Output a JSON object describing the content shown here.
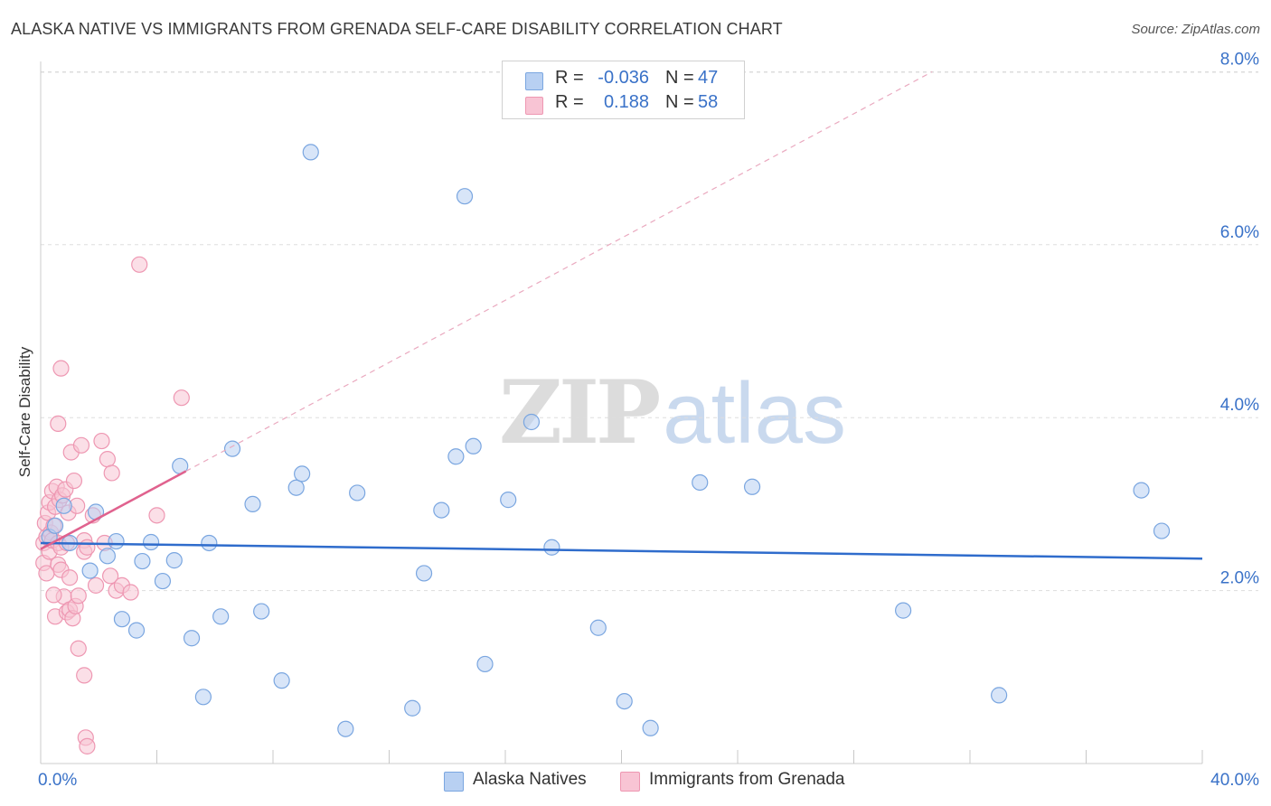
{
  "header": {
    "title": "ALASKA NATIVE VS IMMIGRANTS FROM GRENADA SELF-CARE DISABILITY CORRELATION CHART",
    "source": "Source: ZipAtlas.com"
  },
  "watermark": {
    "zip": "ZIP",
    "atlas": "atlas"
  },
  "legend_top": [
    {
      "r_label": "R =",
      "r_value": "-0.036",
      "n_label": "N =",
      "n_value": "47"
    },
    {
      "r_label": "R =",
      "r_value": "0.188",
      "n_label": "N =",
      "n_value": "58"
    }
  ],
  "colors": {
    "blue_fill": "#b8d0f2",
    "blue_stroke": "#7aa6e0",
    "blue_line": "#2f6ccc",
    "pink_fill": "#f8c4d4",
    "pink_stroke": "#ee97b2",
    "pink_line": "#e0628e",
    "tick_text": "#3a72c8",
    "grid": "#dddddd"
  },
  "chart_data": {
    "type": "scatter",
    "title": "ALASKA NATIVE VS IMMIGRANTS FROM GRENADA SELF-CARE DISABILITY CORRELATION CHART",
    "xlabel": "",
    "ylabel": "Self-Care Disability",
    "xlim": [
      0,
      40
    ],
    "ylim": [
      0,
      8.5
    ],
    "x_tick_labels": [
      {
        "value": 0,
        "label": "0.0%"
      },
      {
        "value": 40,
        "label": "40.0%"
      }
    ],
    "y_tick_labels": [
      {
        "value": 2,
        "label": "2.0%"
      },
      {
        "value": 4,
        "label": "4.0%"
      },
      {
        "value": 6,
        "label": "6.0%"
      },
      {
        "value": 8,
        "label": "8.0%"
      }
    ],
    "series": [
      {
        "name": "Alaska Natives",
        "color": "blue",
        "R": -0.036,
        "N": 47,
        "trend": {
          "x": [
            0,
            40
          ],
          "y": [
            2.55,
            2.37
          ],
          "dashed_extension": false
        },
        "points": [
          [
            0.3,
            2.62
          ],
          [
            0.5,
            2.75
          ],
          [
            0.8,
            2.98
          ],
          [
            1.0,
            2.55
          ],
          [
            1.7,
            2.23
          ],
          [
            1.9,
            2.91
          ],
          [
            2.3,
            2.4
          ],
          [
            2.6,
            2.57
          ],
          [
            2.8,
            1.67
          ],
          [
            3.3,
            1.54
          ],
          [
            3.5,
            2.34
          ],
          [
            3.8,
            2.56
          ],
          [
            4.2,
            2.11
          ],
          [
            4.6,
            2.35
          ],
          [
            4.8,
            3.44
          ],
          [
            5.2,
            1.45
          ],
          [
            5.6,
            0.77
          ],
          [
            5.8,
            2.55
          ],
          [
            6.2,
            1.7
          ],
          [
            6.6,
            3.64
          ],
          [
            7.3,
            3.0
          ],
          [
            7.6,
            1.76
          ],
          [
            8.3,
            0.96
          ],
          [
            8.8,
            3.19
          ],
          [
            9.0,
            3.35
          ],
          [
            9.3,
            7.07
          ],
          [
            10.5,
            0.4
          ],
          [
            10.9,
            3.13
          ],
          [
            12.8,
            0.64
          ],
          [
            13.2,
            2.2
          ],
          [
            13.8,
            2.93
          ],
          [
            14.3,
            3.55
          ],
          [
            14.6,
            6.56
          ],
          [
            14.9,
            3.67
          ],
          [
            15.3,
            1.15
          ],
          [
            16.1,
            3.05
          ],
          [
            16.9,
            3.95
          ],
          [
            17.6,
            2.5
          ],
          [
            19.2,
            1.57
          ],
          [
            20.1,
            0.72
          ],
          [
            21.0,
            0.41
          ],
          [
            22.7,
            3.25
          ],
          [
            24.5,
            3.2
          ],
          [
            29.7,
            1.77
          ],
          [
            33.0,
            0.79
          ],
          [
            37.9,
            3.16
          ],
          [
            38.6,
            2.69
          ]
        ]
      },
      {
        "name": "Immigrants from Grenada",
        "color": "pink",
        "R": 0.188,
        "N": 58,
        "trend": {
          "x": [
            0,
            5.0
          ],
          "y": [
            2.48,
            3.38
          ],
          "dashed_extension": true,
          "dashed_to": {
            "x": 30.7,
            "y": 8.0
          }
        },
        "points": [
          [
            0.1,
            2.32
          ],
          [
            0.1,
            2.55
          ],
          [
            0.15,
            2.78
          ],
          [
            0.2,
            2.62
          ],
          [
            0.2,
            2.2
          ],
          [
            0.25,
            2.9
          ],
          [
            0.3,
            3.02
          ],
          [
            0.3,
            2.45
          ],
          [
            0.35,
            2.67
          ],
          [
            0.4,
            3.15
          ],
          [
            0.4,
            2.58
          ],
          [
            0.45,
            2.75
          ],
          [
            0.5,
            2.97
          ],
          [
            0.5,
            1.7
          ],
          [
            0.55,
            3.2
          ],
          [
            0.6,
            2.55
          ],
          [
            0.6,
            2.3
          ],
          [
            0.65,
            3.05
          ],
          [
            0.7,
            2.5
          ],
          [
            0.7,
            2.24
          ],
          [
            0.75,
            3.1
          ],
          [
            0.8,
            1.93
          ],
          [
            0.85,
            3.17
          ],
          [
            0.9,
            2.55
          ],
          [
            0.9,
            1.75
          ],
          [
            0.7,
            4.57
          ],
          [
            0.95,
            2.9
          ],
          [
            1.0,
            1.78
          ],
          [
            1.0,
            2.15
          ],
          [
            1.05,
            3.6
          ],
          [
            1.1,
            1.68
          ],
          [
            1.15,
            3.27
          ],
          [
            1.2,
            1.82
          ],
          [
            1.25,
            2.98
          ],
          [
            1.3,
            1.94
          ],
          [
            1.3,
            1.33
          ],
          [
            1.4,
            3.68
          ],
          [
            1.5,
            2.58
          ],
          [
            1.5,
            1.02
          ],
          [
            1.5,
            2.45
          ],
          [
            1.55,
            0.3
          ],
          [
            1.6,
            2.5
          ],
          [
            1.6,
            0.2
          ],
          [
            1.8,
            2.87
          ],
          [
            1.9,
            2.06
          ],
          [
            2.1,
            3.73
          ],
          [
            0.6,
            3.93
          ],
          [
            2.2,
            2.55
          ],
          [
            2.3,
            3.52
          ],
          [
            2.4,
            2.17
          ],
          [
            2.45,
            3.36
          ],
          [
            2.6,
            2.0
          ],
          [
            2.8,
            2.06
          ],
          [
            3.1,
            1.98
          ],
          [
            3.4,
            5.77
          ],
          [
            4.0,
            2.87
          ],
          [
            4.85,
            4.23
          ],
          [
            0.45,
            1.95
          ]
        ]
      }
    ],
    "legend": {
      "position": "bottom-center",
      "items": [
        "Alaska Natives",
        "Immigrants from Grenada"
      ]
    }
  }
}
